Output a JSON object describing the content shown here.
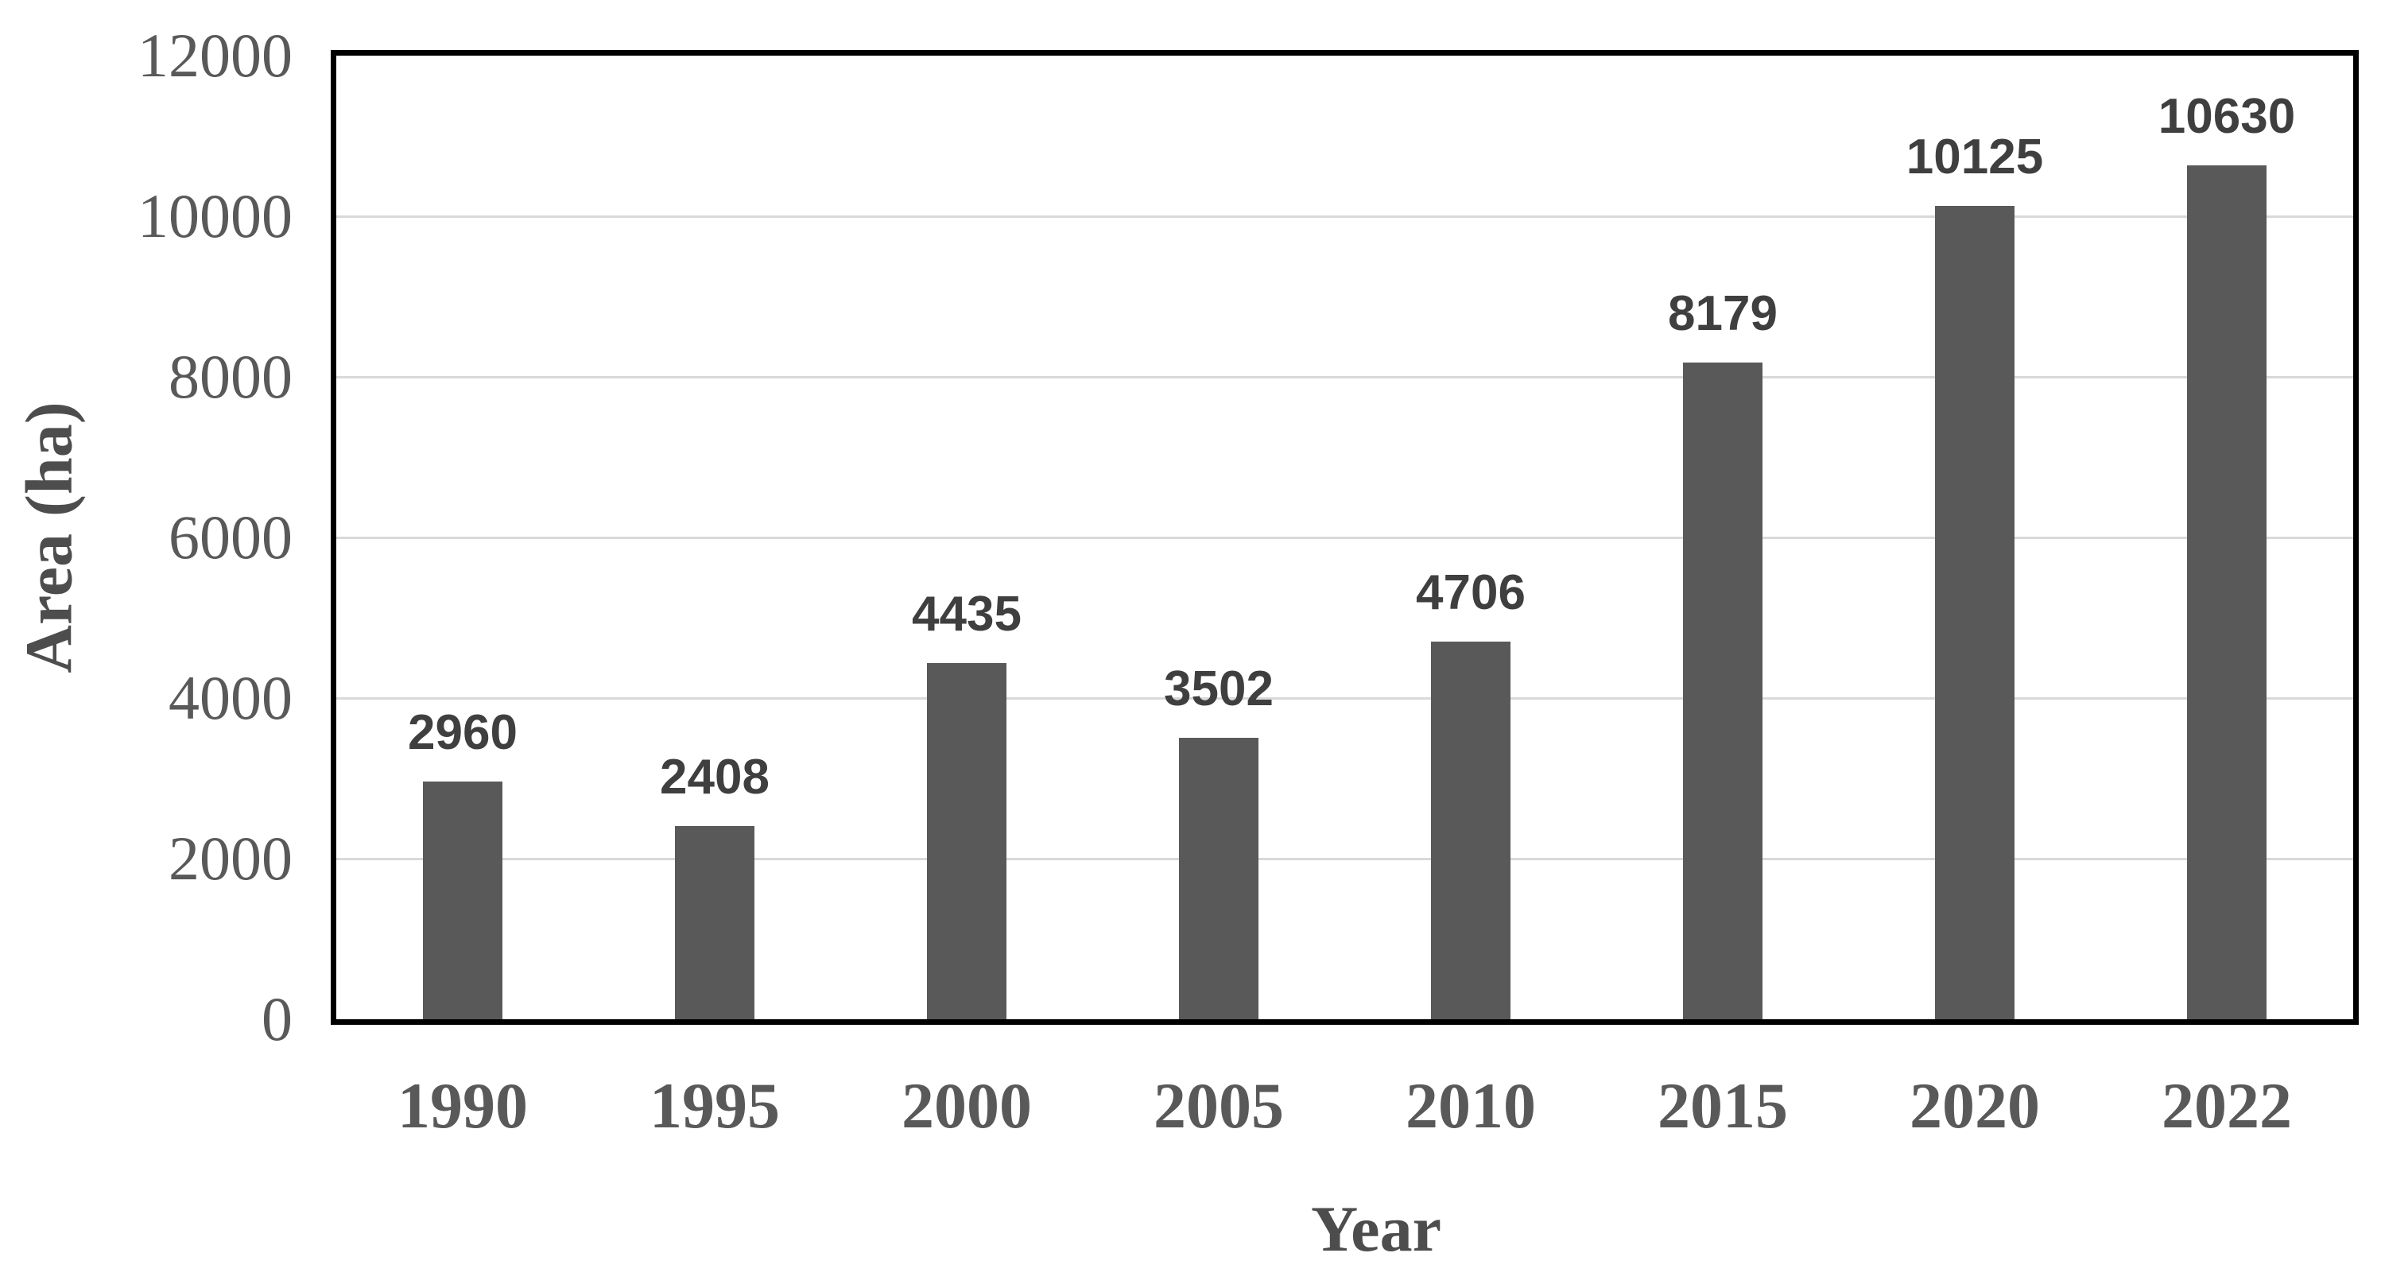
{
  "chart_data": {
    "type": "bar",
    "title": "",
    "categories": [
      "1990",
      "1995",
      "2000",
      "2005",
      "2010",
      "2015",
      "2020",
      "2022"
    ],
    "values": [
      2960,
      2408,
      4435,
      3502,
      4706,
      8179,
      10125,
      10630
    ],
    "xlabel": "Year",
    "ylabel": "Area (ha)",
    "ylim": [
      0,
      12000
    ],
    "yticks": [
      0,
      2000,
      4000,
      6000,
      8000,
      10000,
      12000
    ],
    "grid": true,
    "legend": "none",
    "bar_value_labels_shown": true,
    "colors": {
      "bar": "#595959",
      "value_label": "#3f3f3f",
      "tick": "#595959",
      "axis_title": "#4d4d4d",
      "gridline": "#d9d9d9",
      "plot_border": "#000000",
      "background": "#ffffff"
    }
  }
}
